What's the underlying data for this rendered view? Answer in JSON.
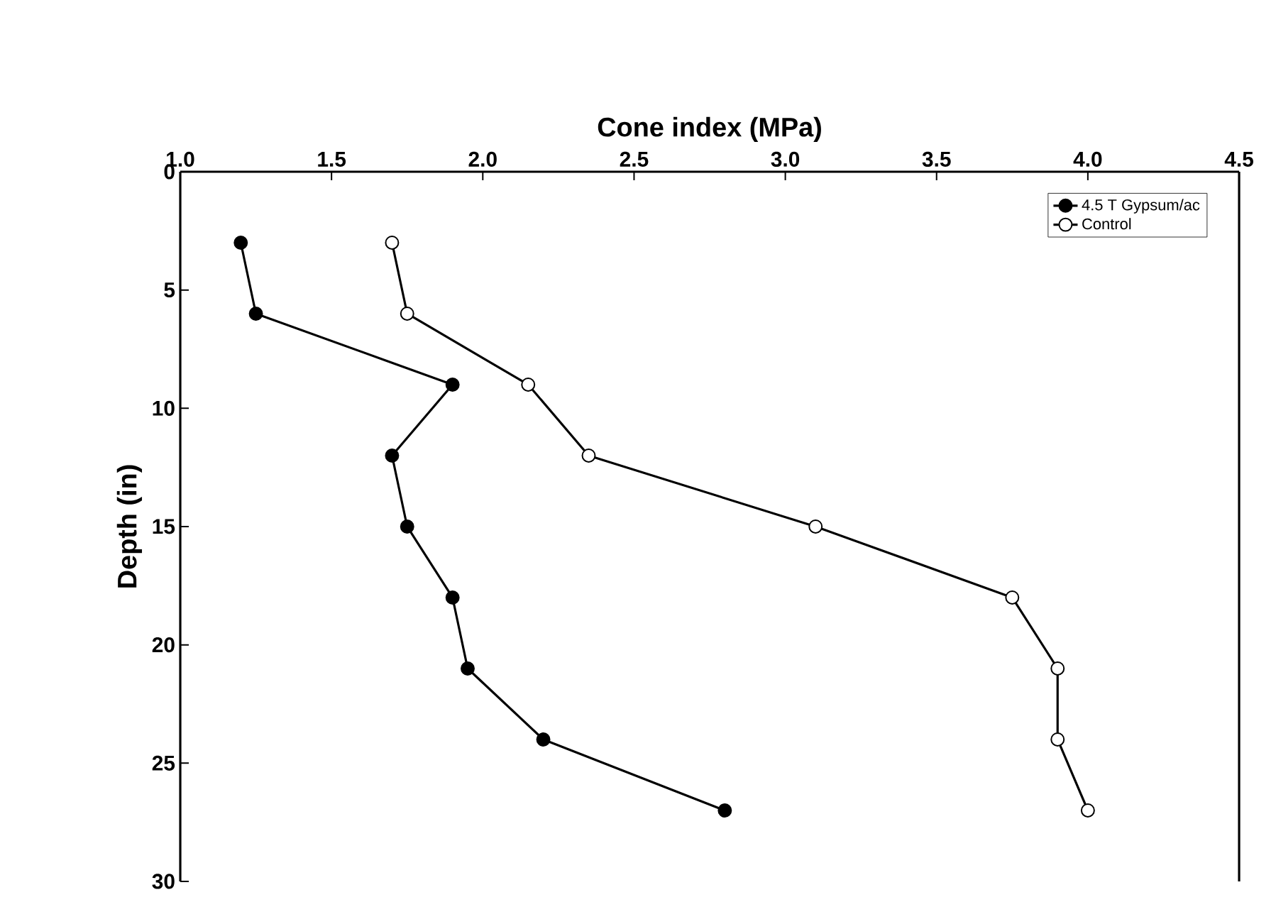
{
  "chart_data": {
    "type": "line",
    "xlabel": "Cone index (MPa)",
    "ylabel": "Depth (in)",
    "xlim": [
      1.0,
      4.5
    ],
    "xticks": [
      {
        "value": 1.0,
        "label": "1.0"
      },
      {
        "value": 1.5,
        "label": "1.5"
      },
      {
        "value": 2.0,
        "label": "2.0"
      },
      {
        "value": 2.5,
        "label": "2.5"
      },
      {
        "value": 3.0,
        "label": "3.0"
      },
      {
        "value": 3.5,
        "label": "3.5"
      },
      {
        "value": 4.0,
        "label": "4.0"
      },
      {
        "value": 4.5,
        "label": "4.5"
      }
    ],
    "ylim": [
      30,
      0
    ],
    "yticks": [
      0,
      5,
      10,
      15,
      20,
      25,
      30
    ],
    "marker": "circle",
    "legend": "top right",
    "grid": false,
    "series": [
      {
        "name": "4.5 T Gypsum/ac",
        "color": "#000000",
        "x": [
          1.2,
          1.25,
          1.9,
          1.7,
          1.75,
          1.9,
          1.95,
          2.2,
          2.8
        ],
        "values": [
          3,
          6,
          9,
          12,
          15,
          18,
          21,
          24,
          27
        ]
      },
      {
        "name": "Control",
        "color": "#ffffff",
        "x": [
          1.7,
          1.75,
          2.15,
          2.35,
          3.1,
          3.75,
          3.9,
          3.9,
          4.0
        ],
        "values": [
          3,
          6,
          9,
          12,
          15,
          18,
          21,
          24,
          27
        ]
      }
    ]
  }
}
